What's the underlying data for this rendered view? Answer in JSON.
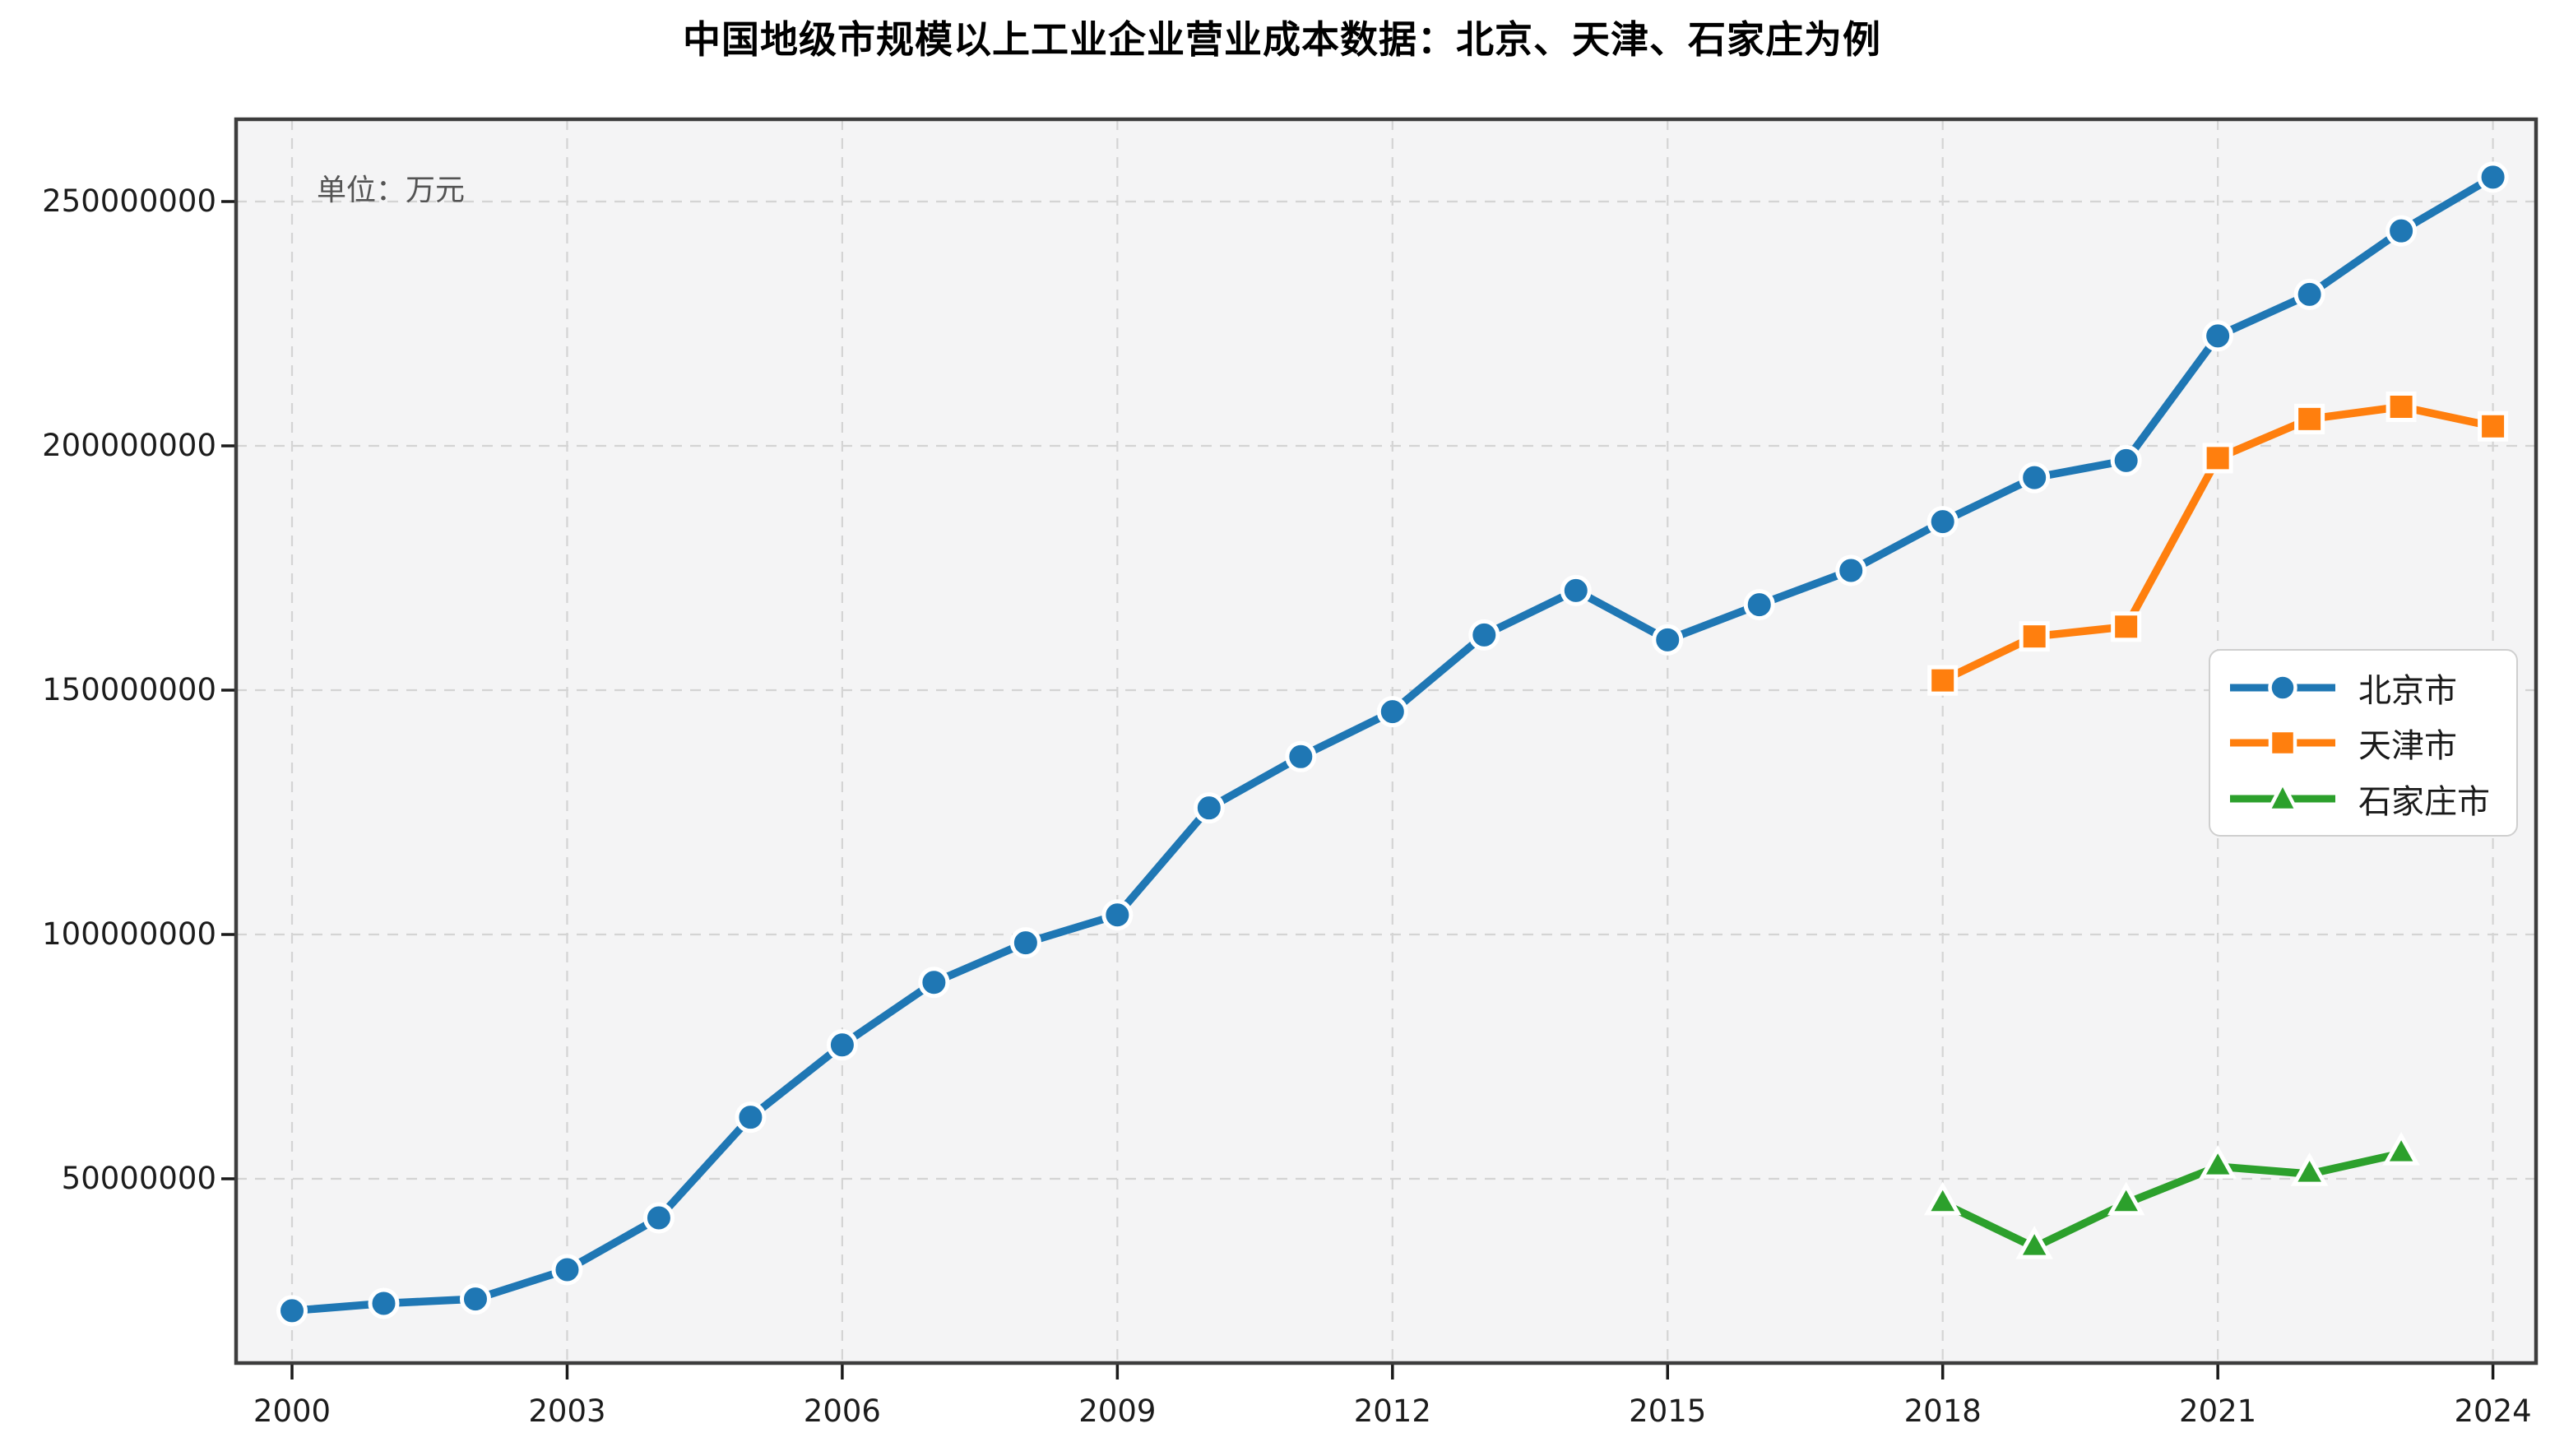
{
  "chart_data": {
    "type": "line",
    "title": "中国地级市规模以上工业企业营业成本数据：北京、天津、石家庄为例",
    "unit_label": "单位：万元",
    "xlabel": "",
    "ylabel": "",
    "grid": true,
    "legend_position": "center-right",
    "xlim": [
      1999.39,
      2024.47
    ],
    "ylim": [
      12290000,
      266840000
    ],
    "x_ticks": [
      2000,
      2003,
      2006,
      2009,
      2012,
      2015,
      2018,
      2021,
      2024
    ],
    "y_ticks": [
      50000000,
      100000000,
      150000000,
      200000000,
      250000000
    ],
    "y_tick_labels": [
      "50000000",
      "100000000",
      "150000000",
      "200000000",
      "250000000"
    ],
    "x_tick_labels": [
      "2000",
      "2003",
      "2006",
      "2009",
      "2012",
      "2015",
      "2018",
      "2021",
      "2024"
    ],
    "series": [
      {
        "name": "北京市",
        "color": "#1f77b4",
        "marker": "circle",
        "x": [
          2000,
          2001,
          2002,
          2003,
          2004,
          2005,
          2006,
          2007,
          2008,
          2009,
          2010,
          2011,
          2012,
          2013,
          2014,
          2015,
          2016,
          2017,
          2018,
          2019,
          2020,
          2021,
          2022,
          2023,
          2024
        ],
        "values": [
          23000000,
          24500000,
          25400000,
          31400000,
          42000000,
          62600000,
          77400000,
          90200000,
          98300000,
          104000000,
          125900000,
          136400000,
          145600000,
          161300000,
          170400000,
          160300000,
          167500000,
          174500000,
          184500000,
          193500000,
          197000000,
          222500000,
          231000000,
          244000000,
          255000000
        ]
      },
      {
        "name": "天津市",
        "color": "#ff7f0e",
        "marker": "square",
        "x": [
          2018,
          2019,
          2020,
          2021,
          2022,
          2023,
          2024
        ],
        "values": [
          152000000,
          161000000,
          163000000,
          197500000,
          205500000,
          208000000,
          204000000
        ]
      },
      {
        "name": "石家庄市",
        "color": "#2ca02c",
        "marker": "triangle",
        "x": [
          2018,
          2019,
          2020,
          2021,
          2022,
          2023
        ],
        "values": [
          45000000,
          36000000,
          45000000,
          52500000,
          51000000,
          55200000
        ]
      }
    ],
    "plot_background_color": "#f4f4f5",
    "gridline_color": "#d4d4d4",
    "spine_color": "#3d3d3d"
  }
}
